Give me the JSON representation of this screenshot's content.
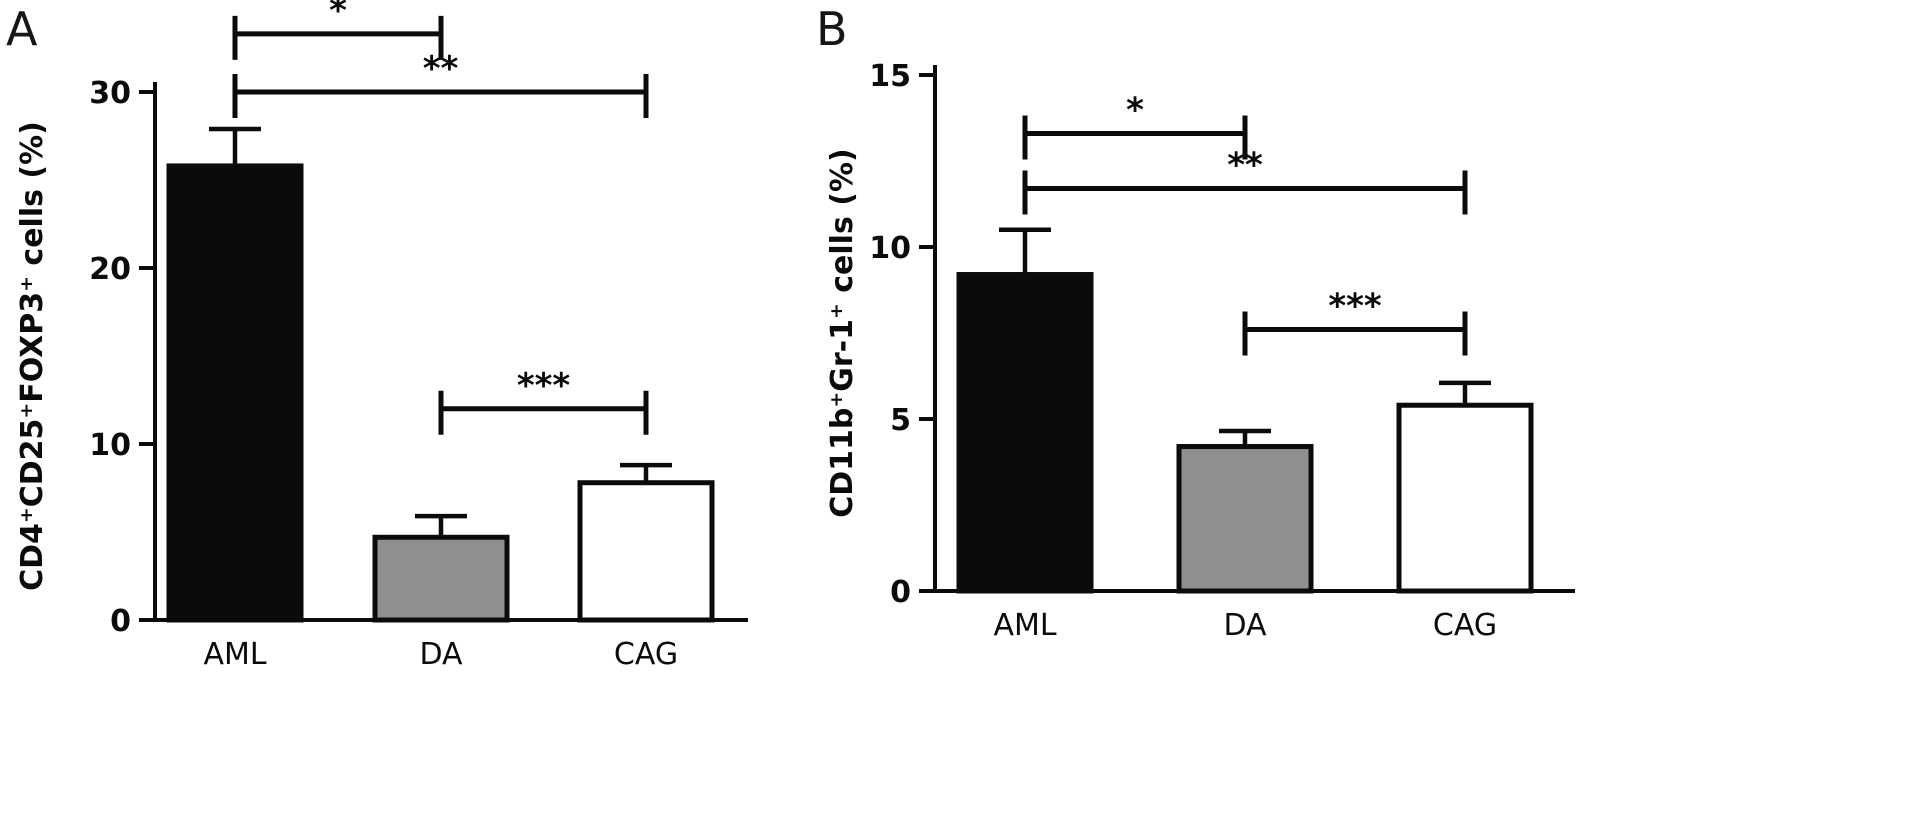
{
  "figure": {
    "panels": [
      {
        "label": "A"
      },
      {
        "label": "B"
      }
    ]
  },
  "chart_data": [
    {
      "type": "bar",
      "panel": "A",
      "categories": [
        "AML",
        "DA",
        "CAG"
      ],
      "values": [
        25.8,
        4.7,
        7.8
      ],
      "errors": [
        2.1,
        1.2,
        1.0
      ],
      "title": "",
      "xlabel": "",
      "ylabel": "CD4⁺CD25⁺FOXP3⁺ cells (%)",
      "ylim": [
        0,
        30
      ],
      "yticks": [
        0,
        10,
        20,
        30
      ],
      "grid": false,
      "legend": "none",
      "bar_colors": [
        "#0b0b0b",
        "#8f8f8f",
        "#ffffff"
      ],
      "bar_edge_color": "#0b0b0b",
      "significance": [
        {
          "groups": [
            0,
            1
          ],
          "label": "*",
          "y": 33.3
        },
        {
          "groups": [
            0,
            2
          ],
          "label": "**",
          "y": 30.0
        },
        {
          "groups": [
            1,
            2
          ],
          "label": "***",
          "y": 12.0
        }
      ]
    },
    {
      "type": "bar",
      "panel": "B",
      "categories": [
        "AML",
        "DA",
        "CAG"
      ],
      "values": [
        9.2,
        4.2,
        5.4
      ],
      "errors": [
        1.3,
        0.45,
        0.65
      ],
      "title": "",
      "xlabel": "",
      "ylabel": "CD11b⁺Gr-1⁺ cells (%)",
      "ylim": [
        0,
        15
      ],
      "yticks": [
        0,
        5,
        10,
        15
      ],
      "grid": false,
      "legend": "none",
      "bar_colors": [
        "#0b0b0b",
        "#8f8f8f",
        "#ffffff"
      ],
      "bar_edge_color": "#0b0b0b",
      "significance": [
        {
          "groups": [
            0,
            1
          ],
          "label": "*",
          "y": 13.3
        },
        {
          "groups": [
            0,
            2
          ],
          "label": "**",
          "y": 11.7
        },
        {
          "groups": [
            1,
            2
          ],
          "label": "***",
          "y": 7.6
        }
      ]
    }
  ]
}
